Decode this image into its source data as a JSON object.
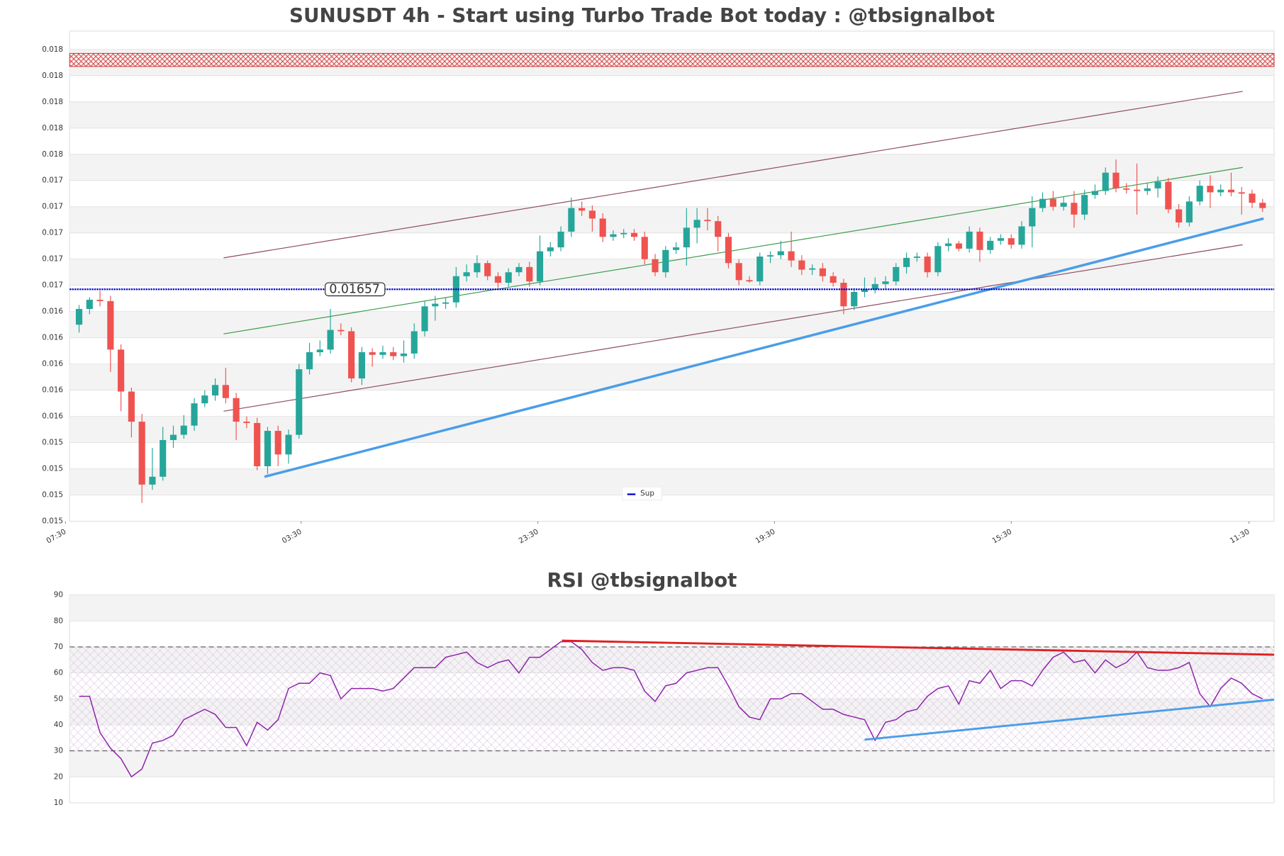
{
  "chart_data": [
    {
      "type": "candlestick",
      "title": "SUNUSDT 4h - Start using Turbo Trade Bot today : @tbsignalbot",
      "up_color": "#26a69a",
      "down_color": "#ef5350",
      "open": [
        0.0163,
        0.01642,
        0.01649,
        0.01648,
        0.01611,
        0.01579,
        0.01556,
        0.01508,
        0.01514,
        0.01542,
        0.01546,
        0.01553,
        0.0157,
        0.01576,
        0.01584,
        0.01574,
        0.01556,
        0.01555,
        0.01522,
        0.01549,
        0.01531,
        0.01546,
        0.01596,
        0.01609,
        0.01611,
        0.01626,
        0.01625,
        0.01589,
        0.01609,
        0.01607,
        0.01609,
        0.01606,
        0.01608,
        0.01625,
        0.01644,
        0.01646,
        0.01647,
        0.01667,
        0.0167,
        0.01677,
        0.01667,
        0.01662,
        0.0167,
        0.01674,
        0.01663,
        0.01686,
        0.01689,
        0.01701,
        0.01719,
        0.01717,
        0.01711,
        0.01697,
        0.01699,
        0.017,
        0.01697,
        0.0168,
        0.0167,
        0.01687,
        0.01689,
        0.01704,
        0.0171,
        0.01709,
        0.01697,
        0.01677,
        0.01664,
        0.01663,
        0.01682,
        0.01683,
        0.01686,
        0.01679,
        0.01672,
        0.01673,
        0.01667,
        0.01662,
        0.01644,
        0.01655,
        0.01657,
        0.01661,
        0.01663,
        0.01674,
        0.01681,
        0.01682,
        0.0167,
        0.0169,
        0.01692,
        0.01688,
        0.01701,
        0.01687,
        0.01694,
        0.01696,
        0.01691,
        0.01705,
        0.01719,
        0.01726,
        0.0172,
        0.01723,
        0.01714,
        0.01729,
        0.01732,
        0.01746,
        0.01734,
        0.01733,
        0.01732,
        0.01734,
        0.01739,
        0.01718,
        0.01708,
        0.01724,
        0.01736,
        0.01731,
        0.01733,
        0.01731,
        0.0173,
        0.01723
      ],
      "high": [
        0.01645,
        0.01651,
        0.01656,
        0.01652,
        0.01615,
        0.01582,
        0.01562,
        0.01536,
        0.01552,
        0.01553,
        0.01561,
        0.01574,
        0.0158,
        0.01589,
        0.01597,
        0.01578,
        0.0156,
        0.01559,
        0.01552,
        0.01553,
        0.0155,
        0.016,
        0.01616,
        0.01618,
        0.01642,
        0.01631,
        0.01628,
        0.01613,
        0.01612,
        0.01614,
        0.01613,
        0.01618,
        0.01631,
        0.01648,
        0.01652,
        0.01651,
        0.01674,
        0.01676,
        0.01683,
        0.01679,
        0.0167,
        0.01673,
        0.01677,
        0.01678,
        0.01698,
        0.01693,
        0.01705,
        0.01727,
        0.01724,
        0.01721,
        0.01715,
        0.01702,
        0.01703,
        0.01703,
        0.01701,
        0.01684,
        0.0169,
        0.01693,
        0.01719,
        0.01719,
        0.01719,
        0.01713,
        0.017,
        0.0168,
        0.01667,
        0.01685,
        0.01686,
        0.01694,
        0.01701,
        0.01683,
        0.01676,
        0.01677,
        0.0167,
        0.01665,
        0.01658,
        0.01666,
        0.01666,
        0.01667,
        0.01677,
        0.01685,
        0.01685,
        0.01685,
        0.01693,
        0.01696,
        0.01694,
        0.01705,
        0.01704,
        0.01697,
        0.01699,
        0.01699,
        0.01709,
        0.01728,
        0.01731,
        0.01732,
        0.01728,
        0.01732,
        0.01733,
        0.01737,
        0.0175,
        0.01756,
        0.01738,
        0.01753,
        0.01738,
        0.01743,
        0.01742,
        0.01722,
        0.01728,
        0.0174,
        0.01744,
        0.01737,
        0.01746,
        0.01735,
        0.01733,
        0.01726
      ],
      "low": [
        0.01624,
        0.01638,
        0.01644,
        0.01594,
        0.01564,
        0.01544,
        0.01494,
        0.01504,
        0.01511,
        0.01536,
        0.01543,
        0.01549,
        0.01567,
        0.01572,
        0.0157,
        0.01542,
        0.01551,
        0.01519,
        0.01516,
        0.01522,
        0.01524,
        0.01543,
        0.01592,
        0.01606,
        0.01608,
        0.01622,
        0.01586,
        0.01584,
        0.01598,
        0.01604,
        0.01603,
        0.01601,
        0.01604,
        0.01621,
        0.01633,
        0.01642,
        0.01643,
        0.01663,
        0.01666,
        0.01664,
        0.01658,
        0.01659,
        0.01667,
        0.01659,
        0.0166,
        0.01682,
        0.01686,
        0.01697,
        0.01713,
        0.01701,
        0.01693,
        0.01694,
        0.01696,
        0.01694,
        0.01676,
        0.01667,
        0.01666,
        0.01684,
        0.01675,
        0.01692,
        0.01702,
        0.01686,
        0.01673,
        0.0166,
        0.01662,
        0.0166,
        0.01677,
        0.0168,
        0.01674,
        0.01668,
        0.01668,
        0.01663,
        0.01659,
        0.01638,
        0.01641,
        0.01651,
        0.01654,
        0.01657,
        0.0166,
        0.01669,
        0.01678,
        0.01666,
        0.01667,
        0.01686,
        0.01686,
        0.01685,
        0.01678,
        0.01684,
        0.01691,
        0.01688,
        0.01688,
        0.01689,
        0.01716,
        0.01717,
        0.01717,
        0.01704,
        0.0171,
        0.01726,
        0.01729,
        0.01731,
        0.0173,
        0.01714,
        0.01729,
        0.01727,
        0.01715,
        0.01704,
        0.01705,
        0.01721,
        0.01719,
        0.01728,
        0.01728,
        0.01714,
        0.01719,
        0.01716
      ],
      "close": [
        0.01642,
        0.01649,
        0.01648,
        0.01611,
        0.01579,
        0.01556,
        0.01508,
        0.01514,
        0.01542,
        0.01546,
        0.01553,
        0.0157,
        0.01576,
        0.01584,
        0.01574,
        0.01556,
        0.01555,
        0.01522,
        0.01549,
        0.01531,
        0.01546,
        0.01596,
        0.01609,
        0.01611,
        0.01626,
        0.01625,
        0.01589,
        0.01609,
        0.01607,
        0.01609,
        0.01606,
        0.01608,
        0.01625,
        0.01644,
        0.01646,
        0.01647,
        0.01667,
        0.0167,
        0.01677,
        0.01667,
        0.01662,
        0.0167,
        0.01674,
        0.01663,
        0.01686,
        0.01689,
        0.01701,
        0.01719,
        0.01717,
        0.01711,
        0.01697,
        0.01699,
        0.017,
        0.01697,
        0.0168,
        0.0167,
        0.01687,
        0.01689,
        0.01704,
        0.0171,
        0.01709,
        0.01697,
        0.01677,
        0.01664,
        0.01663,
        0.01682,
        0.01683,
        0.01686,
        0.01679,
        0.01672,
        0.01673,
        0.01667,
        0.01662,
        0.01644,
        0.01655,
        0.01657,
        0.01661,
        0.01663,
        0.01674,
        0.01681,
        0.01682,
        0.0167,
        0.0169,
        0.01692,
        0.01688,
        0.01701,
        0.01687,
        0.01694,
        0.01696,
        0.01691,
        0.01705,
        0.01719,
        0.01726,
        0.0172,
        0.01723,
        0.01714,
        0.01729,
        0.01732,
        0.01746,
        0.01734,
        0.01733,
        0.01732,
        0.01734,
        0.01739,
        0.01718,
        0.01708,
        0.01724,
        0.01736,
        0.01731,
        0.01733,
        0.01731,
        0.0173,
        0.01723,
        0.01719
      ],
      "xlim": [
        -0.9,
        114.1
      ],
      "xticks": [
        {
          "value": -1.3,
          "label": "07:30"
        },
        {
          "value": 21.2,
          "label": "03:30"
        },
        {
          "value": 43.8,
          "label": "23:30"
        },
        {
          "value": 66.4,
          "label": "19:30"
        },
        {
          "value": 89.0,
          "label": "15:30"
        },
        {
          "value": 111.7,
          "label": "11:30"
        }
      ],
      "ylim": [
        0.0148,
        0.01854
      ],
      "yticks": [
        {
          "value": 0.0148,
          "label": "0.015"
        },
        0.015,
        {
          "value": 0.0152,
          "label": "0.015"
        },
        {
          "value": 0.0154,
          "label": "0.015"
        },
        {
          "value": 0.0156,
          "label": "0.016"
        },
        {
          "value": 0.0158,
          "label": "0.016"
        },
        0.016,
        {
          "value": 0.0162,
          "label": "0.016"
        },
        {
          "value": 0.0164,
          "label": "0.016"
        },
        {
          "value": 0.0166,
          "label": "0.017"
        },
        {
          "value": 0.0168,
          "label": "0.017"
        },
        0.017,
        {
          "value": 0.0172,
          "label": "0.017"
        },
        {
          "value": 0.0174,
          "label": "0.017"
        },
        {
          "value": 0.0176,
          "label": "0.018"
        },
        {
          "value": 0.0178,
          "label": "0.018"
        },
        0.018,
        {
          "value": 0.0182,
          "label": "0.018"
        },
        {
          "value": 0.0184,
          "label": "0.018"
        }
      ],
      "grid": true,
      "support": {
        "name": "Sup",
        "value": 0.01657,
        "color": "#0000cc"
      },
      "resistance_zone": {
        "values": [
          0.01827,
          0.01837
        ],
        "color": "#d62728"
      },
      "lines": [
        {
          "color": "#8c4a5e",
          "width": 1,
          "x": [
            13.8,
            111.1
          ],
          "y": [
            0.01681,
            0.01808
          ]
        },
        {
          "color": "#3a9a4a",
          "width": 1,
          "x": [
            13.8,
            111.1
          ],
          "y": [
            0.01623,
            0.0175
          ]
        },
        {
          "color": "#8c4a5e",
          "width": 1,
          "x": [
            13.8,
            111.1
          ],
          "y": [
            0.01564,
            0.01691
          ]
        },
        {
          "color": "#4a9de8",
          "width": 3,
          "x": [
            17.7,
            113.1
          ],
          "y": [
            0.01514,
            0.01711
          ]
        }
      ]
    },
    {
      "type": "line",
      "title": "RSI @tbsignalbot",
      "color": "#8e24aa",
      "values": [
        51,
        51,
        37,
        31,
        27,
        20,
        23,
        33,
        34,
        36,
        42,
        44,
        46,
        44,
        39,
        39,
        32,
        41,
        38,
        42,
        54,
        56,
        56,
        60,
        59,
        50,
        54,
        54,
        54,
        53,
        54,
        58,
        62,
        62,
        62,
        66,
        67,
        68,
        64,
        62,
        64,
        65,
        60,
        66,
        66,
        69,
        72,
        72,
        69,
        64,
        61,
        62,
        62,
        61,
        53,
        49,
        55,
        56,
        60,
        61,
        62,
        62,
        55,
        47,
        43,
        42,
        50,
        50,
        52,
        52,
        49,
        46,
        46,
        44,
        43,
        42,
        34,
        41,
        42,
        45,
        46,
        51,
        54,
        55,
        48,
        57,
        56,
        61,
        54,
        57,
        57,
        55,
        61,
        66,
        68,
        64,
        65,
        60,
        65,
        62,
        64,
        68,
        62,
        61,
        61,
        62,
        64,
        52,
        47,
        54,
        58,
        56,
        52,
        50
      ],
      "xlim": [
        -0.9,
        114.1
      ],
      "ylim": [
        10,
        90
      ],
      "yticks": [
        10,
        20,
        30,
        40,
        50,
        60,
        70,
        80,
        90
      ],
      "grid": true,
      "levels": [
        30,
        70
      ],
      "lines": [
        {
          "color": "#e02020",
          "width": 2.5,
          "x": [
            46.1,
            114.1
          ],
          "y": [
            72.4,
            67
          ]
        },
        {
          "color": "#4a9de8",
          "width": 2.5,
          "x": [
            75,
            114.1
          ],
          "y": [
            34.3,
            49.7
          ]
        }
      ]
    }
  ]
}
